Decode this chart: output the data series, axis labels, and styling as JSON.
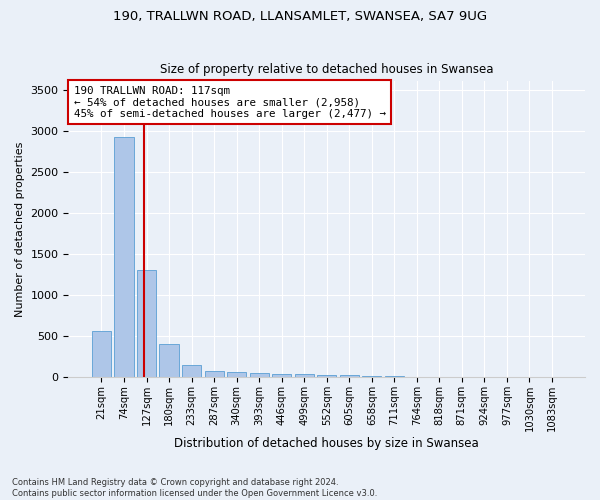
{
  "title_line1": "190, TRALLWN ROAD, LLANSAMLET, SWANSEA, SA7 9UG",
  "title_line2": "Size of property relative to detached houses in Swansea",
  "xlabel": "Distribution of detached houses by size in Swansea",
  "ylabel": "Number of detached properties",
  "categories": [
    "21sqm",
    "74sqm",
    "127sqm",
    "180sqm",
    "233sqm",
    "287sqm",
    "340sqm",
    "393sqm",
    "446sqm",
    "499sqm",
    "552sqm",
    "605sqm",
    "658sqm",
    "711sqm",
    "764sqm",
    "818sqm",
    "871sqm",
    "924sqm",
    "977sqm",
    "1030sqm",
    "1083sqm"
  ],
  "bar_heights": [
    570,
    2920,
    1310,
    410,
    155,
    80,
    60,
    55,
    45,
    40,
    35,
    25,
    20,
    15,
    10,
    8,
    5,
    4,
    3,
    2,
    1
  ],
  "bar_color": "#aec6e8",
  "bar_edge_color": "#5a9fd4",
  "annotation_text": "190 TRALLWN ROAD: 117sqm\n← 54% of detached houses are smaller (2,958)\n45% of semi-detached houses are larger (2,477) →",
  "annotation_box_color": "#ffffff",
  "annotation_box_edge": "#cc0000",
  "vline_color": "#cc0000",
  "vline_x": 1.9,
  "ylim": [
    0,
    3600
  ],
  "yticks": [
    0,
    500,
    1000,
    1500,
    2000,
    2500,
    3000,
    3500
  ],
  "background_color": "#eaf0f8",
  "grid_color": "#ffffff",
  "footnote": "Contains HM Land Registry data © Crown copyright and database right 2024.\nContains public sector information licensed under the Open Government Licence v3.0."
}
